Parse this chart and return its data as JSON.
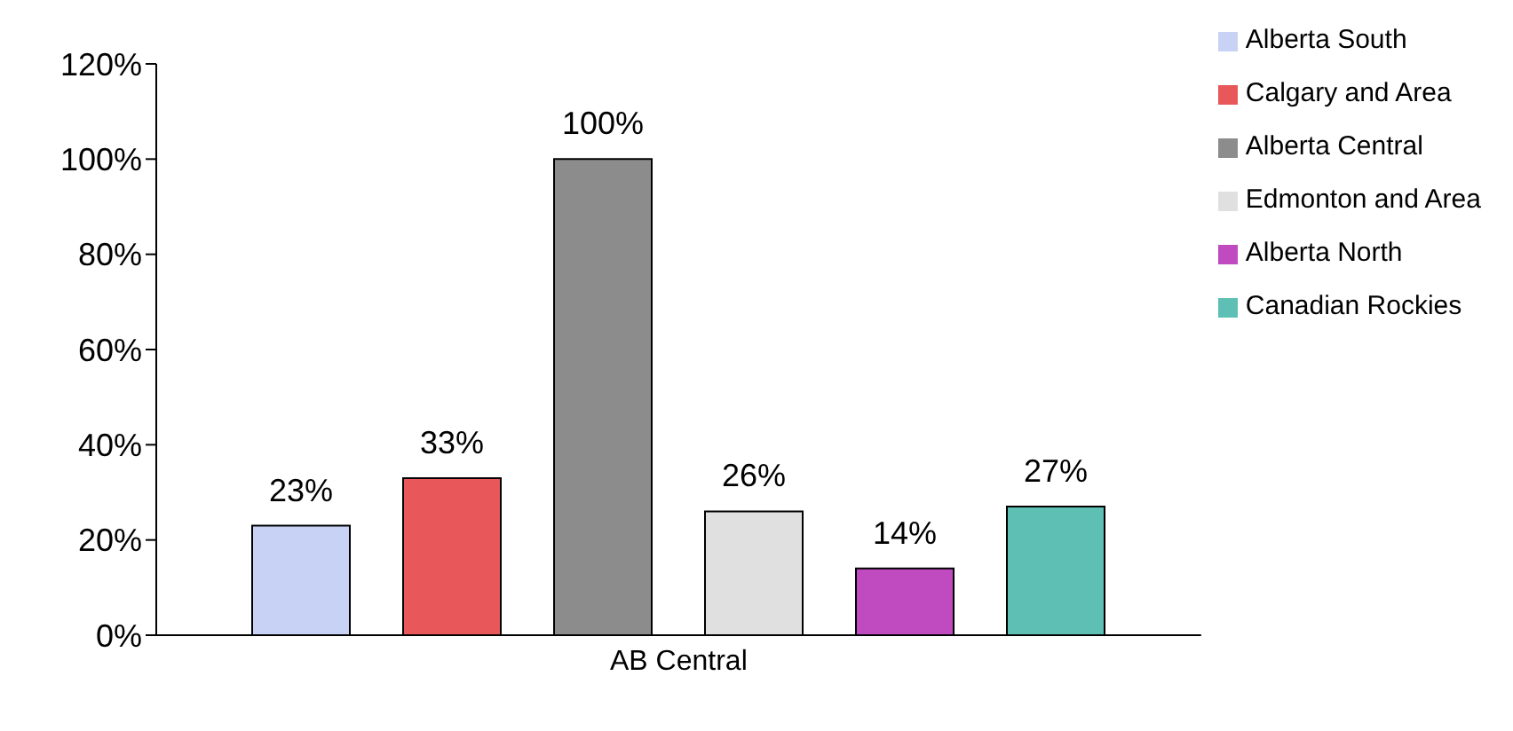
{
  "chart_data": {
    "type": "bar",
    "categories": [
      "AB Central"
    ],
    "series": [
      {
        "name": "Alberta South",
        "color": "#c8d2f5",
        "values": [
          23
        ],
        "value_labels": [
          "23%"
        ]
      },
      {
        "name": "Calgary and Area",
        "color": "#e8585a",
        "values": [
          33
        ],
        "value_labels": [
          "33%"
        ]
      },
      {
        "name": "Alberta Central",
        "color": "#8c8c8c",
        "values": [
          100
        ],
        "value_labels": [
          "100%"
        ]
      },
      {
        "name": "Edmonton and Area",
        "color": "#e0e0e0",
        "values": [
          26
        ],
        "value_labels": [
          "26%"
        ]
      },
      {
        "name": "Alberta North",
        "color": "#c04ac0",
        "values": [
          14
        ],
        "value_labels": [
          "14%"
        ]
      },
      {
        "name": "Canadian Rockies",
        "color": "#5ec0b4",
        "values": [
          27
        ],
        "value_labels": [
          "27%"
        ]
      }
    ],
    "ylim": [
      0,
      120
    ],
    "yticks": [
      {
        "value": 0,
        "label": "0%"
      },
      {
        "value": 20,
        "label": "20%"
      },
      {
        "value": 40,
        "label": "40%"
      },
      {
        "value": 60,
        "label": "60%"
      },
      {
        "value": 80,
        "label": "80%"
      },
      {
        "value": 100,
        "label": "100%"
      },
      {
        "value": 120,
        "label": "120%"
      }
    ],
    "grid": false,
    "legend": "top right"
  }
}
